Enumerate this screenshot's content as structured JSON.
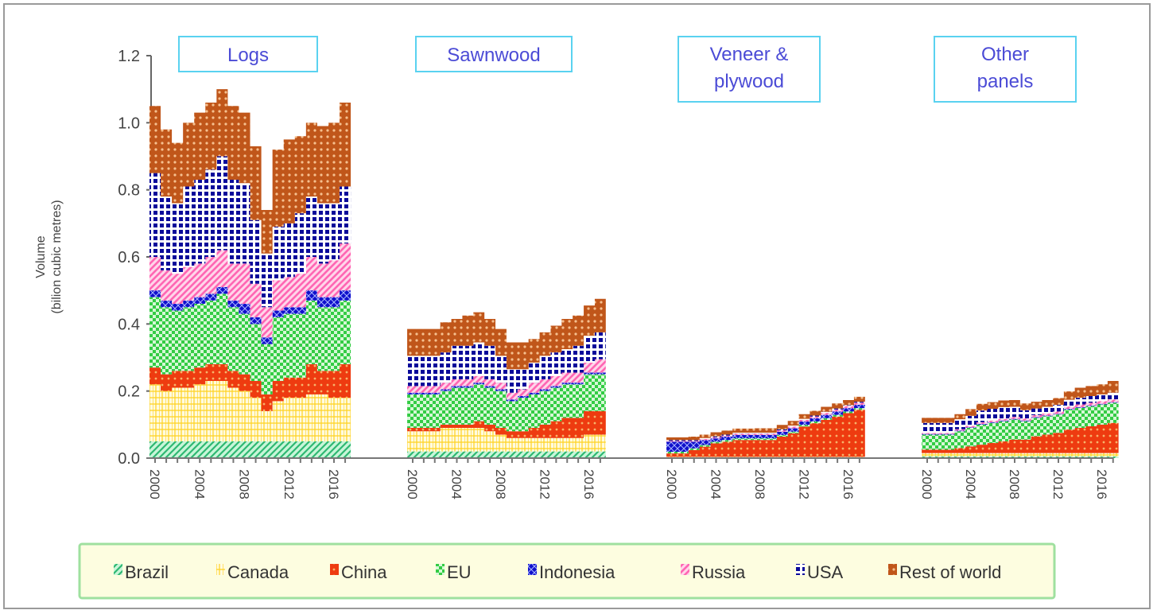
{
  "chart_data": {
    "type": "area",
    "subtype": "stacked-step",
    "title": "",
    "ylabel": "Volume",
    "ylabel_line2": "(bilion cubic metres)",
    "ylim": [
      0,
      1.2
    ],
    "yticks": [
      "0.0",
      "0.2",
      "0.4",
      "0.6",
      "0.8",
      "1.0",
      "1.2"
    ],
    "grid": false,
    "legend_position": "bottom",
    "year_ticks": [
      "2000",
      "2004",
      "2008",
      "2012",
      "2016"
    ],
    "years": [
      2000,
      2001,
      2002,
      2003,
      2004,
      2005,
      2006,
      2007,
      2008,
      2009,
      2010,
      2011,
      2012,
      2013,
      2014,
      2015,
      2016,
      2017
    ],
    "series": [
      {
        "name": "Brazil",
        "color": "#2eb872",
        "bg": "#c8f5d8",
        "pattern": "diag"
      },
      {
        "name": "Canada",
        "color": "#ffd21f",
        "bg": "#fffbe0",
        "pattern": "grid"
      },
      {
        "name": "China",
        "color": "#ee3b10",
        "bg": "#f08a3a",
        "pattern": "dots"
      },
      {
        "name": "EU",
        "color": "#33cc44",
        "bg": "#d6f7d6",
        "pattern": "check"
      },
      {
        "name": "Indonesia",
        "color": "#1010cc",
        "bg": "#8aa0ff",
        "pattern": "cross"
      },
      {
        "name": "Russia",
        "color": "#ff66b3",
        "bg": "#ffd6ea",
        "pattern": "diag2"
      },
      {
        "name": "USA",
        "color": "#0a0a9a",
        "bg": "#ffffff",
        "pattern": "squares"
      },
      {
        "name": "Rest of world",
        "color": "#c0561a",
        "bg": "#f3b27a",
        "pattern": "dots2"
      }
    ],
    "panels": [
      {
        "title": [
          "Logs"
        ],
        "values": {
          "Brazil": [
            0.05,
            0.05,
            0.05,
            0.05,
            0.05,
            0.05,
            0.05,
            0.05,
            0.05,
            0.05,
            0.05,
            0.05,
            0.05,
            0.05,
            0.05,
            0.05,
            0.05,
            0.05
          ],
          "Canada": [
            0.17,
            0.15,
            0.16,
            0.16,
            0.17,
            0.18,
            0.18,
            0.16,
            0.15,
            0.13,
            0.09,
            0.12,
            0.13,
            0.13,
            0.14,
            0.14,
            0.13,
            0.13
          ],
          "China": [
            0.05,
            0.05,
            0.05,
            0.05,
            0.05,
            0.05,
            0.05,
            0.05,
            0.05,
            0.05,
            0.05,
            0.06,
            0.06,
            0.06,
            0.09,
            0.07,
            0.08,
            0.1
          ],
          "EU": [
            0.21,
            0.2,
            0.18,
            0.19,
            0.19,
            0.19,
            0.21,
            0.19,
            0.18,
            0.17,
            0.15,
            0.19,
            0.19,
            0.19,
            0.19,
            0.19,
            0.19,
            0.19
          ],
          "Indonesia": [
            0.02,
            0.02,
            0.02,
            0.02,
            0.02,
            0.02,
            0.02,
            0.02,
            0.03,
            0.02,
            0.02,
            0.02,
            0.02,
            0.02,
            0.03,
            0.03,
            0.03,
            0.03
          ],
          "Russia": [
            0.1,
            0.09,
            0.09,
            0.1,
            0.1,
            0.11,
            0.11,
            0.11,
            0.12,
            0.1,
            0.09,
            0.09,
            0.09,
            0.1,
            0.1,
            0.1,
            0.11,
            0.14
          ],
          "USA": [
            0.25,
            0.22,
            0.21,
            0.24,
            0.25,
            0.26,
            0.28,
            0.25,
            0.24,
            0.19,
            0.16,
            0.16,
            0.16,
            0.18,
            0.18,
            0.18,
            0.17,
            0.17
          ],
          "Rest of world": [
            0.2,
            0.2,
            0.18,
            0.19,
            0.2,
            0.2,
            0.2,
            0.22,
            0.21,
            0.22,
            0.13,
            0.23,
            0.25,
            0.23,
            0.22,
            0.23,
            0.24,
            0.25
          ]
        }
      },
      {
        "title": [
          "Sawnwood"
        ],
        "values": {
          "Brazil": [
            0.02,
            0.02,
            0.02,
            0.02,
            0.02,
            0.02,
            0.02,
            0.02,
            0.02,
            0.02,
            0.02,
            0.02,
            0.02,
            0.02,
            0.02,
            0.02,
            0.02,
            0.02
          ],
          "Canada": [
            0.06,
            0.06,
            0.06,
            0.07,
            0.07,
            0.07,
            0.07,
            0.06,
            0.05,
            0.04,
            0.04,
            0.04,
            0.04,
            0.04,
            0.04,
            0.04,
            0.05,
            0.05
          ],
          "China": [
            0.01,
            0.01,
            0.01,
            0.01,
            0.01,
            0.01,
            0.02,
            0.02,
            0.02,
            0.02,
            0.02,
            0.03,
            0.04,
            0.05,
            0.06,
            0.06,
            0.07,
            0.07
          ],
          "EU": [
            0.1,
            0.1,
            0.1,
            0.1,
            0.11,
            0.11,
            0.11,
            0.11,
            0.11,
            0.09,
            0.1,
            0.1,
            0.1,
            0.1,
            0.1,
            0.1,
            0.11,
            0.11
          ],
          "Indonesia": [
            0.005,
            0.005,
            0.005,
            0.005,
            0.005,
            0.005,
            0.005,
            0.005,
            0.005,
            0.005,
            0.005,
            0.005,
            0.005,
            0.005,
            0.005,
            0.005,
            0.005,
            0.005
          ],
          "Russia": [
            0.02,
            0.02,
            0.02,
            0.02,
            0.02,
            0.02,
            0.02,
            0.02,
            0.02,
            0.02,
            0.02,
            0.03,
            0.03,
            0.03,
            0.03,
            0.03,
            0.03,
            0.04
          ],
          "USA": [
            0.09,
            0.09,
            0.09,
            0.09,
            0.1,
            0.1,
            0.1,
            0.1,
            0.08,
            0.07,
            0.06,
            0.06,
            0.07,
            0.07,
            0.07,
            0.08,
            0.08,
            0.08
          ],
          "Rest of world": [
            0.08,
            0.08,
            0.08,
            0.09,
            0.08,
            0.09,
            0.09,
            0.08,
            0.08,
            0.08,
            0.08,
            0.07,
            0.07,
            0.08,
            0.09,
            0.09,
            0.09,
            0.1
          ]
        }
      },
      {
        "title": [
          "Veneer &",
          "plywood"
        ],
        "values": {
          "Brazil": [
            0.002,
            0.002,
            0.002,
            0.002,
            0.002,
            0.002,
            0.002,
            0.002,
            0.002,
            0.002,
            0.002,
            0.002,
            0.002,
            0.002,
            0.002,
            0.002,
            0.002,
            0.002
          ],
          "Canada": [
            0.002,
            0.002,
            0.002,
            0.002,
            0.002,
            0.002,
            0.002,
            0.002,
            0.002,
            0.002,
            0.002,
            0.002,
            0.002,
            0.002,
            0.002,
            0.002,
            0.002,
            0.002
          ],
          "China": [
            0.01,
            0.01,
            0.02,
            0.03,
            0.04,
            0.045,
            0.05,
            0.05,
            0.05,
            0.05,
            0.06,
            0.07,
            0.09,
            0.1,
            0.11,
            0.12,
            0.13,
            0.14
          ],
          "EU": [
            0.005,
            0.005,
            0.005,
            0.005,
            0.005,
            0.005,
            0.005,
            0.005,
            0.005,
            0.005,
            0.005,
            0.005,
            0.005,
            0.005,
            0.005,
            0.005,
            0.005,
            0.005
          ],
          "Indonesia": [
            0.03,
            0.03,
            0.02,
            0.015,
            0.01,
            0.01,
            0.01,
            0.01,
            0.01,
            0.01,
            0.01,
            0.01,
            0.01,
            0.01,
            0.01,
            0.01,
            0.01,
            0.01
          ],
          "Russia": [
            0.002,
            0.002,
            0.002,
            0.003,
            0.003,
            0.003,
            0.004,
            0.004,
            0.004,
            0.004,
            0.004,
            0.005,
            0.005,
            0.005,
            0.006,
            0.006,
            0.006,
            0.006
          ],
          "USA": [
            0.003,
            0.003,
            0.003,
            0.003,
            0.003,
            0.003,
            0.003,
            0.003,
            0.003,
            0.003,
            0.003,
            0.003,
            0.003,
            0.003,
            0.003,
            0.003,
            0.003,
            0.003
          ],
          "Rest of world": [
            0.008,
            0.008,
            0.01,
            0.01,
            0.012,
            0.012,
            0.012,
            0.012,
            0.013,
            0.013,
            0.013,
            0.014,
            0.014,
            0.014,
            0.015,
            0.015,
            0.015,
            0.015
          ]
        }
      },
      {
        "title": [
          "Other",
          "panels"
        ],
        "values": {
          "Brazil": [
            0.005,
            0.005,
            0.005,
            0.005,
            0.005,
            0.005,
            0.005,
            0.005,
            0.005,
            0.005,
            0.005,
            0.005,
            0.005,
            0.005,
            0.005,
            0.005,
            0.005,
            0.005
          ],
          "Canada": [
            0.01,
            0.01,
            0.01,
            0.01,
            0.01,
            0.01,
            0.01,
            0.01,
            0.01,
            0.01,
            0.01,
            0.01,
            0.01,
            0.01,
            0.01,
            0.01,
            0.01,
            0.01
          ],
          "China": [
            0.01,
            0.01,
            0.01,
            0.015,
            0.02,
            0.025,
            0.03,
            0.035,
            0.04,
            0.04,
            0.05,
            0.055,
            0.06,
            0.07,
            0.075,
            0.08,
            0.085,
            0.09
          ],
          "EU": [
            0.045,
            0.045,
            0.045,
            0.05,
            0.055,
            0.06,
            0.06,
            0.06,
            0.06,
            0.055,
            0.055,
            0.055,
            0.055,
            0.06,
            0.06,
            0.06,
            0.06,
            0.06
          ],
          "Indonesia": [
            0.002,
            0.002,
            0.002,
            0.002,
            0.002,
            0.002,
            0.002,
            0.002,
            0.002,
            0.002,
            0.002,
            0.002,
            0.002,
            0.002,
            0.002,
            0.002,
            0.002,
            0.002
          ],
          "Russia": [
            0.003,
            0.003,
            0.003,
            0.004,
            0.004,
            0.005,
            0.005,
            0.005,
            0.006,
            0.006,
            0.006,
            0.006,
            0.007,
            0.007,
            0.008,
            0.008,
            0.008,
            0.008
          ],
          "USA": [
            0.03,
            0.03,
            0.03,
            0.03,
            0.03,
            0.035,
            0.035,
            0.035,
            0.03,
            0.025,
            0.02,
            0.02,
            0.02,
            0.02,
            0.02,
            0.02,
            0.02,
            0.02
          ],
          "Rest of world": [
            0.015,
            0.015,
            0.015,
            0.015,
            0.02,
            0.02,
            0.02,
            0.02,
            0.02,
            0.02,
            0.02,
            0.02,
            0.02,
            0.025,
            0.03,
            0.03,
            0.03,
            0.035
          ]
        }
      }
    ]
  }
}
